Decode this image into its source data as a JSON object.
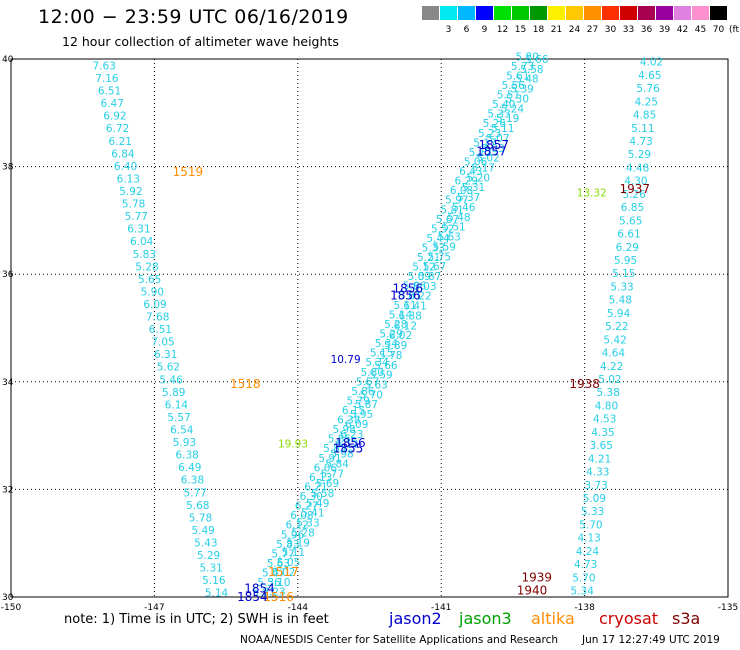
{
  "header": {
    "title": "12:00 − 23:59 UTC 06/16/2019",
    "subtitle": "12 hour collection of altimeter wave heights"
  },
  "legend": {
    "unit": "(ft)",
    "bins": [
      {
        "color": "#888888",
        "label": ""
      },
      {
        "color": "#00e8f0",
        "label": "3"
      },
      {
        "color": "#00b8ff",
        "label": "6"
      },
      {
        "color": "#0000ff",
        "label": "9"
      },
      {
        "color": "#00e000",
        "label": "12"
      },
      {
        "color": "#00c800",
        "label": "15"
      },
      {
        "color": "#009800",
        "label": "18"
      },
      {
        "color": "#fff000",
        "label": "21"
      },
      {
        "color": "#ffc800",
        "label": "24"
      },
      {
        "color": "#ff9000",
        "label": "27"
      },
      {
        "color": "#ff3000",
        "label": "30"
      },
      {
        "color": "#d00000",
        "label": "33"
      },
      {
        "color": "#a80050",
        "label": "36"
      },
      {
        "color": "#9800a0",
        "label": "39"
      },
      {
        "color": "#e080e0",
        "label": "42"
      },
      {
        "color": "#ff90d0",
        "label": "45"
      },
      {
        "color": "#000000",
        "label": "70"
      }
    ]
  },
  "map": {
    "lon_labels": [
      "-150",
      "-147",
      "-144",
      "-141",
      "-138",
      "-135"
    ],
    "lat_labels": [
      "40",
      "38",
      "36",
      "34",
      "32",
      "30"
    ],
    "lon_range": [
      -150,
      -135
    ],
    "lat_range": [
      30,
      40
    ]
  },
  "chart_data": {
    "type": "scatter",
    "xlabel": "",
    "ylabel": "",
    "xlim": [
      -150,
      -135
    ],
    "ylim": [
      30,
      40
    ],
    "colors": {
      "swh": "#26cfe6",
      "jason2": "#0000cc",
      "jason3": "#00a000",
      "altika": "#ff8c00",
      "cryosat": "#cc0000",
      "s3a": "#800000",
      "green_swh": "#88dd00"
    },
    "series": [
      {
        "track": "A",
        "start": [
          -148.05,
          39.88
        ],
        "end": [
          -145.7,
          30.08
        ],
        "values": [
          "7.63",
          "7.16",
          "6.51",
          "6.47",
          "6.92",
          "6.72",
          "6.21",
          "6.84",
          "6.40",
          "6.13",
          "5.92",
          "5.78",
          "5.77",
          "6.31",
          "6.04",
          "5.83",
          "5.28",
          "5.65",
          "5.90",
          "6.09",
          "7.68",
          "6.51",
          "7.05",
          "6.31",
          "5.62",
          "5.46",
          "5.89",
          "6.14",
          "5.57",
          "6.54",
          "5.93",
          "6.38",
          "6.49",
          "6.38",
          "5.77",
          "5.68",
          "5.78",
          "5.49",
          "5.43",
          "5.29",
          "5.31",
          "5.16",
          "5.14"
        ]
      },
      {
        "track": "B1",
        "start": [
          -139.2,
          40.05
        ],
        "end": [
          -144.7,
          30.1
        ],
        "values": [
          "5.80",
          "5.73",
          "5.61",
          "5.56",
          "5.51",
          "5.40",
          "5.33",
          "5.26",
          "5.23",
          "5.17",
          "5.12",
          "5.06",
          "6.43",
          "6.29",
          "6.08",
          "5.97",
          "5.81",
          "5.67",
          "5.52",
          "5.44",
          "5.33",
          "5.21",
          "5.12",
          "5.09",
          "5.06",
          "5.01",
          "5.11",
          "5.14",
          "5.28",
          "5.29",
          "5.34",
          "5.15",
          "5.34",
          "5.80",
          "5.57",
          "5.86",
          "5.79",
          "6.15",
          "6.38",
          "5.98",
          "5.85",
          "5.83",
          "5.91",
          "6.06",
          "6.13",
          "6.21",
          "6.30",
          "6.27",
          "6.08",
          "6.12",
          "5.96",
          "5.83",
          "5.77",
          "5.63",
          "5.47",
          "5.36",
          "5.21"
        ]
      },
      {
        "track": "B2",
        "start": [
          -139.0,
          40.0
        ],
        "end": [
          -144.5,
          30.1
        ],
        "values": [
          "5.66",
          "5.58",
          "5.48",
          "5.39",
          "5.30",
          "5.24",
          "5.19",
          "5.11",
          "5.07",
          "5.03",
          "5.02",
          "5.17",
          "5.20",
          "5.31",
          "5.37",
          "5.46",
          "5.48",
          "5.51",
          "5.63",
          "5.59",
          "5.75",
          "5.67",
          "5.87",
          "6.03",
          "6.22",
          "6.41",
          "6.38",
          "6.12",
          "6.02",
          "5.89",
          "5.78",
          "5.66",
          "5.59",
          "5.63",
          "5.70",
          "5.87",
          "5.95",
          "6.09",
          "6.23",
          "6.12",
          "5.98",
          "5.84",
          "5.77",
          "5.69",
          "5.58",
          "5.49",
          "5.41",
          "5.33",
          "5.28",
          "5.19",
          "5.11",
          "5.05",
          "5.02",
          "5.10",
          "5.23"
        ]
      },
      {
        "track": "C",
        "start": [
          -136.6,
          39.95
        ],
        "end": [
          -138.05,
          30.12
        ],
        "values": [
          "4.02",
          "4.65",
          "5.76",
          "4.25",
          "4.85",
          "5.11",
          "4.73",
          "5.29",
          "4.48",
          "4.30",
          "5.26",
          "6.85",
          "5.65",
          "6.61",
          "6.29",
          "5.95",
          "5.15",
          "5.33",
          "5.48",
          "5.94",
          "5.22",
          "5.42",
          "4.64",
          "4.22",
          "5.02",
          "5.38",
          "4.80",
          "4.53",
          "4.35",
          "3.65",
          "4.21",
          "4.33",
          "3.73",
          "5.09",
          "5.33",
          "5.70",
          "4.13",
          "4.24",
          "4.73",
          "5.70",
          "5.34"
        ]
      }
    ],
    "time_labels": [
      {
        "text": "1857",
        "lon": -139.9,
        "lat": 38.42,
        "sat": "jason2"
      },
      {
        "text": "1857",
        "lon": -139.95,
        "lat": 38.3,
        "sat": "jason2"
      },
      {
        "text": "1519",
        "lon": -146.3,
        "lat": 37.92,
        "sat": "altika"
      },
      {
        "text": "1937",
        "lon": -136.95,
        "lat": 37.6,
        "sat": "s3a"
      },
      {
        "text": "1856",
        "lon": -141.7,
        "lat": 35.75,
        "sat": "jason2"
      },
      {
        "text": "1856",
        "lon": -141.75,
        "lat": 35.62,
        "sat": "jason2"
      },
      {
        "text": "1518",
        "lon": -145.1,
        "lat": 33.98,
        "sat": "altika"
      },
      {
        "text": "1938",
        "lon": -138.0,
        "lat": 33.98,
        "sat": "s3a"
      },
      {
        "text": "1856",
        "lon": -142.9,
        "lat": 32.88,
        "sat": "jason2"
      },
      {
        "text": "1855",
        "lon": -142.95,
        "lat": 32.78,
        "sat": "jason2"
      },
      {
        "text": "1517",
        "lon": -144.3,
        "lat": 30.48,
        "sat": "altika"
      },
      {
        "text": "1939",
        "lon": -139.0,
        "lat": 30.38,
        "sat": "s3a"
      },
      {
        "text": "1854",
        "lon": -144.8,
        "lat": 30.18,
        "sat": "jason2"
      },
      {
        "text": "1516",
        "lon": -144.4,
        "lat": 30.02,
        "sat": "altika"
      },
      {
        "text": "1854",
        "lon": -144.95,
        "lat": 30.02,
        "sat": "jason2"
      },
      {
        "text": "1940",
        "lon": -139.1,
        "lat": 30.14,
        "sat": "s3a"
      }
    ],
    "special_values": [
      {
        "text": "10.79",
        "lon": -143.0,
        "lat": 34.42,
        "sat": "jason2"
      },
      {
        "text": "19.93",
        "lon": -144.1,
        "lat": 32.85,
        "sat": "green_swh"
      },
      {
        "text": "13.32",
        "lon": -137.85,
        "lat": 37.52,
        "sat": "green_swh"
      }
    ]
  },
  "footer": {
    "note": "note:  1) Time is in UTC;  2) SWH is in feet",
    "credit": "NOAA/NESDIS Center for Satellite Applications and Research",
    "timestamp": "Jun 17 12:27:49 UTC 2019",
    "satellites": [
      {
        "name": "jason2",
        "color": "#0000cc"
      },
      {
        "name": "jason3",
        "color": "#00a000"
      },
      {
        "name": "altika",
        "color": "#ff8c00"
      },
      {
        "name": "cryosat",
        "color": "#cc0000"
      },
      {
        "name": "s3a",
        "color": "#800000"
      }
    ]
  }
}
